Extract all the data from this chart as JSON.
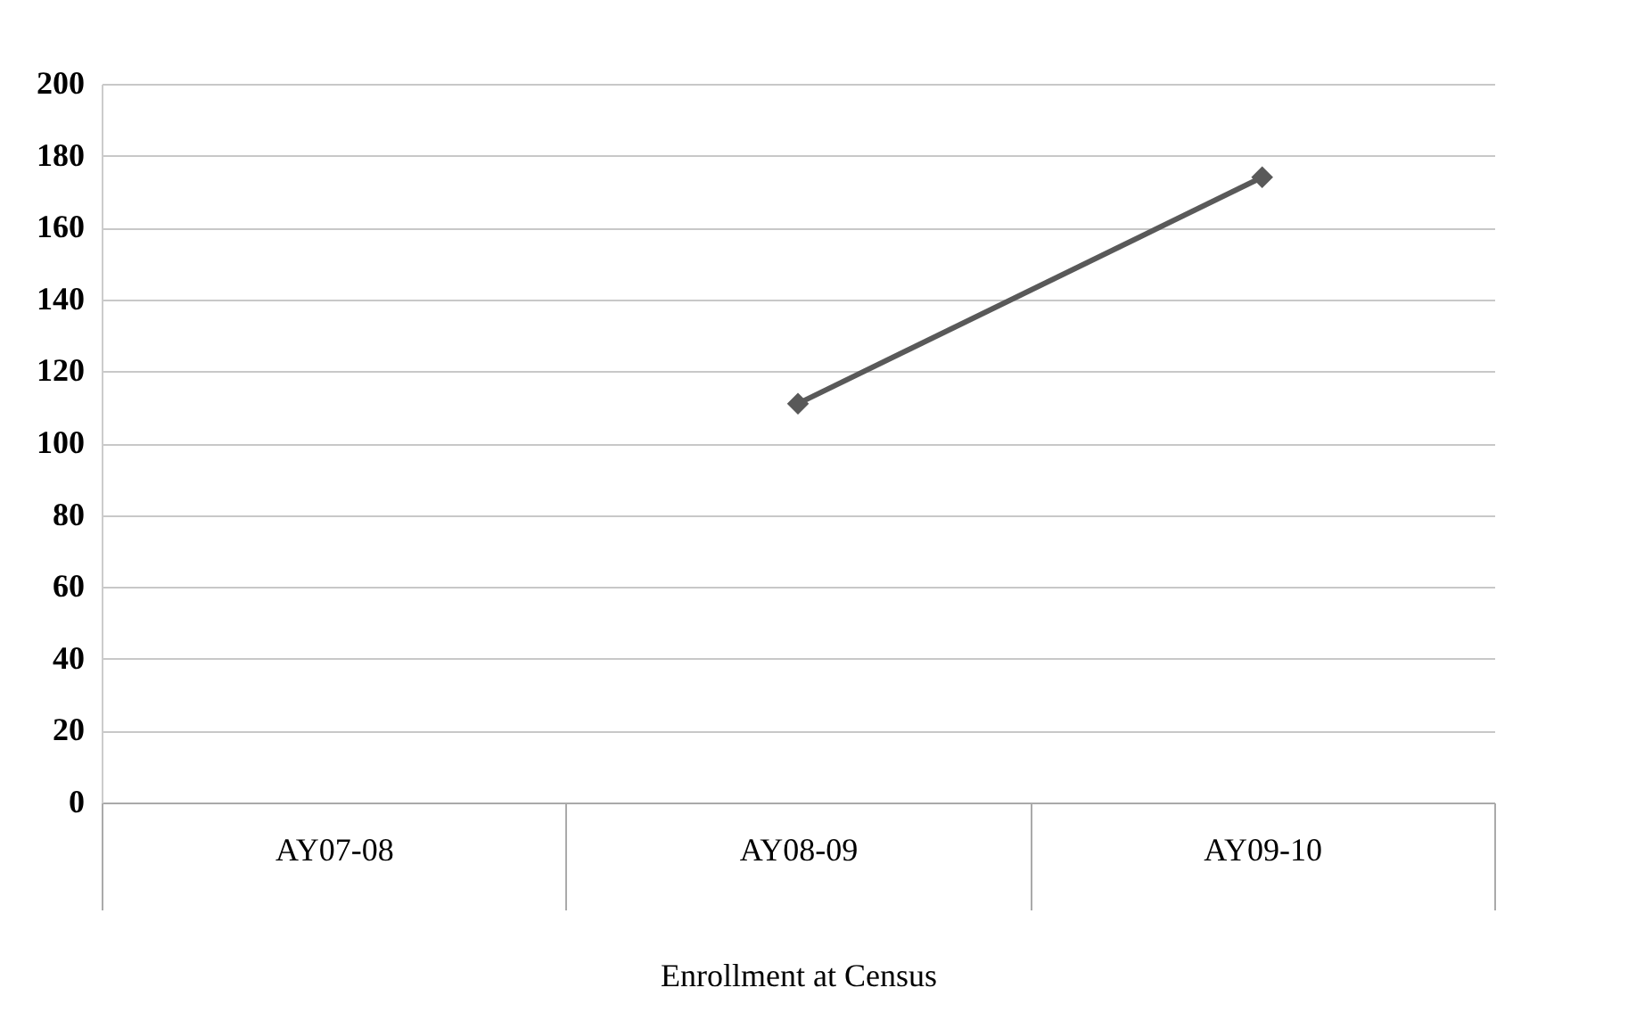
{
  "chart_data": {
    "type": "line",
    "xlabel": "Enrollment at Census",
    "categories": [
      "AY07-08",
      "AY08-09",
      "AY09-10"
    ],
    "series": [
      {
        "color": "#595959",
        "values": [
          null,
          111,
          174
        ]
      }
    ],
    "ylim": [
      0,
      200
    ],
    "yticks": [
      0,
      20,
      40,
      60,
      80,
      100,
      120,
      140,
      160,
      180,
      200
    ],
    "grid": "y",
    "marker": "diamond",
    "line_style": "solid"
  }
}
